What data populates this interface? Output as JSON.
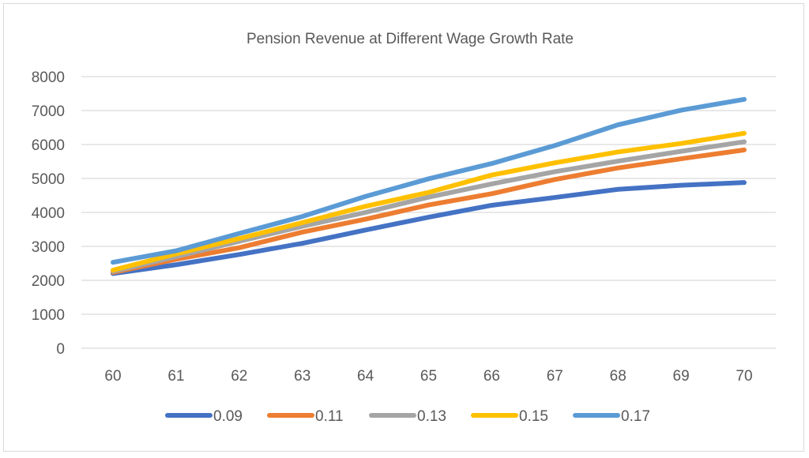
{
  "chart_data": {
    "type": "line",
    "title": "Pension Revenue at Different Wage Growth Rate",
    "xlabel": "",
    "ylabel": "",
    "categories": [
      "60",
      "61",
      "62",
      "63",
      "64",
      "65",
      "66",
      "67",
      "68",
      "69",
      "70"
    ],
    "ylim": [
      0,
      8000
    ],
    "yticks": [
      "0",
      "1000",
      "2000",
      "3000",
      "4000",
      "5000",
      "6000",
      "7000",
      "8000"
    ],
    "grid": true,
    "legend_position": "bottom",
    "series": [
      {
        "name": "0.09",
        "color": "#4472C4",
        "values": [
          2200,
          2460,
          2760,
          3090,
          3480,
          3860,
          4210,
          4440,
          4680,
          4800,
          4880
        ]
      },
      {
        "name": "0.11",
        "color": "#ED7D31",
        "values": [
          2230,
          2620,
          2960,
          3420,
          3800,
          4220,
          4550,
          4970,
          5310,
          5580,
          5840
        ]
      },
      {
        "name": "0.13",
        "color": "#A5A5A5",
        "values": [
          2260,
          2700,
          3150,
          3590,
          4000,
          4450,
          4840,
          5200,
          5510,
          5800,
          6080
        ]
      },
      {
        "name": "0.15",
        "color": "#FFC000",
        "values": [
          2300,
          2780,
          3230,
          3700,
          4180,
          4590,
          5100,
          5460,
          5780,
          6030,
          6330
        ]
      },
      {
        "name": "0.17",
        "color": "#5B9BD5",
        "values": [
          2530,
          2870,
          3380,
          3880,
          4470,
          4990,
          5440,
          5970,
          6580,
          7010,
          7330
        ]
      }
    ]
  }
}
